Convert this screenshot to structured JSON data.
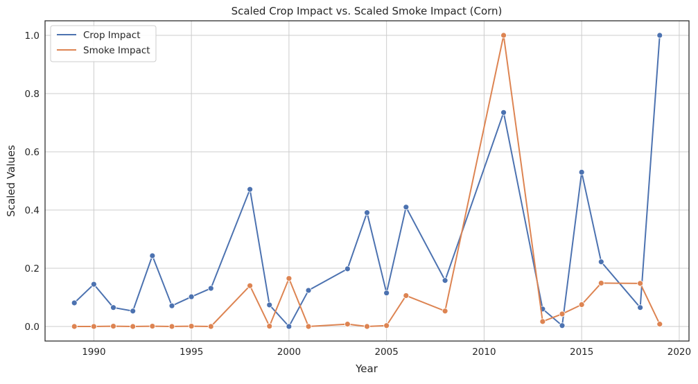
{
  "chart_data": {
    "type": "line",
    "title": "Scaled Crop Impact vs. Scaled Smoke Impact (Corn)",
    "xlabel": "Year",
    "ylabel": "Scaled Values",
    "xlim": [
      1987.5,
      2020.5
    ],
    "ylim": [
      -0.05,
      1.05
    ],
    "xticks": [
      1990,
      1995,
      2000,
      2005,
      2010,
      2015,
      2020
    ],
    "yticks": [
      0.0,
      0.2,
      0.4,
      0.6,
      0.8,
      1.0
    ],
    "grid": true,
    "legend_position": "top-left",
    "x": [
      1989,
      1990,
      1991,
      1992,
      1993,
      1994,
      1995,
      1996,
      1998,
      1999,
      2000,
      2001,
      2003,
      2004,
      2005,
      2006,
      2008,
      2011,
      2013,
      2014,
      2015,
      2016,
      2018,
      2019
    ],
    "series": [
      {
        "name": "Crop Impact",
        "color": "#4c72b0",
        "values": [
          0.081,
          0.145,
          0.065,
          0.053,
          0.243,
          0.071,
          0.102,
          0.131,
          0.471,
          0.074,
          0.0,
          0.124,
          0.198,
          0.391,
          0.115,
          0.41,
          0.158,
          0.735,
          0.06,
          0.003,
          0.53,
          0.222,
          0.065,
          1.0
        ]
      },
      {
        "name": "Smoke Impact",
        "color": "#dd8452",
        "values": [
          0.0,
          0.0,
          0.001,
          0.0,
          0.001,
          0.0,
          0.001,
          0.0,
          0.14,
          0.001,
          0.165,
          0.0,
          0.008,
          0.0,
          0.003,
          0.106,
          0.053,
          1.0,
          0.017,
          0.043,
          0.075,
          0.149,
          0.148,
          0.008
        ]
      }
    ]
  }
}
